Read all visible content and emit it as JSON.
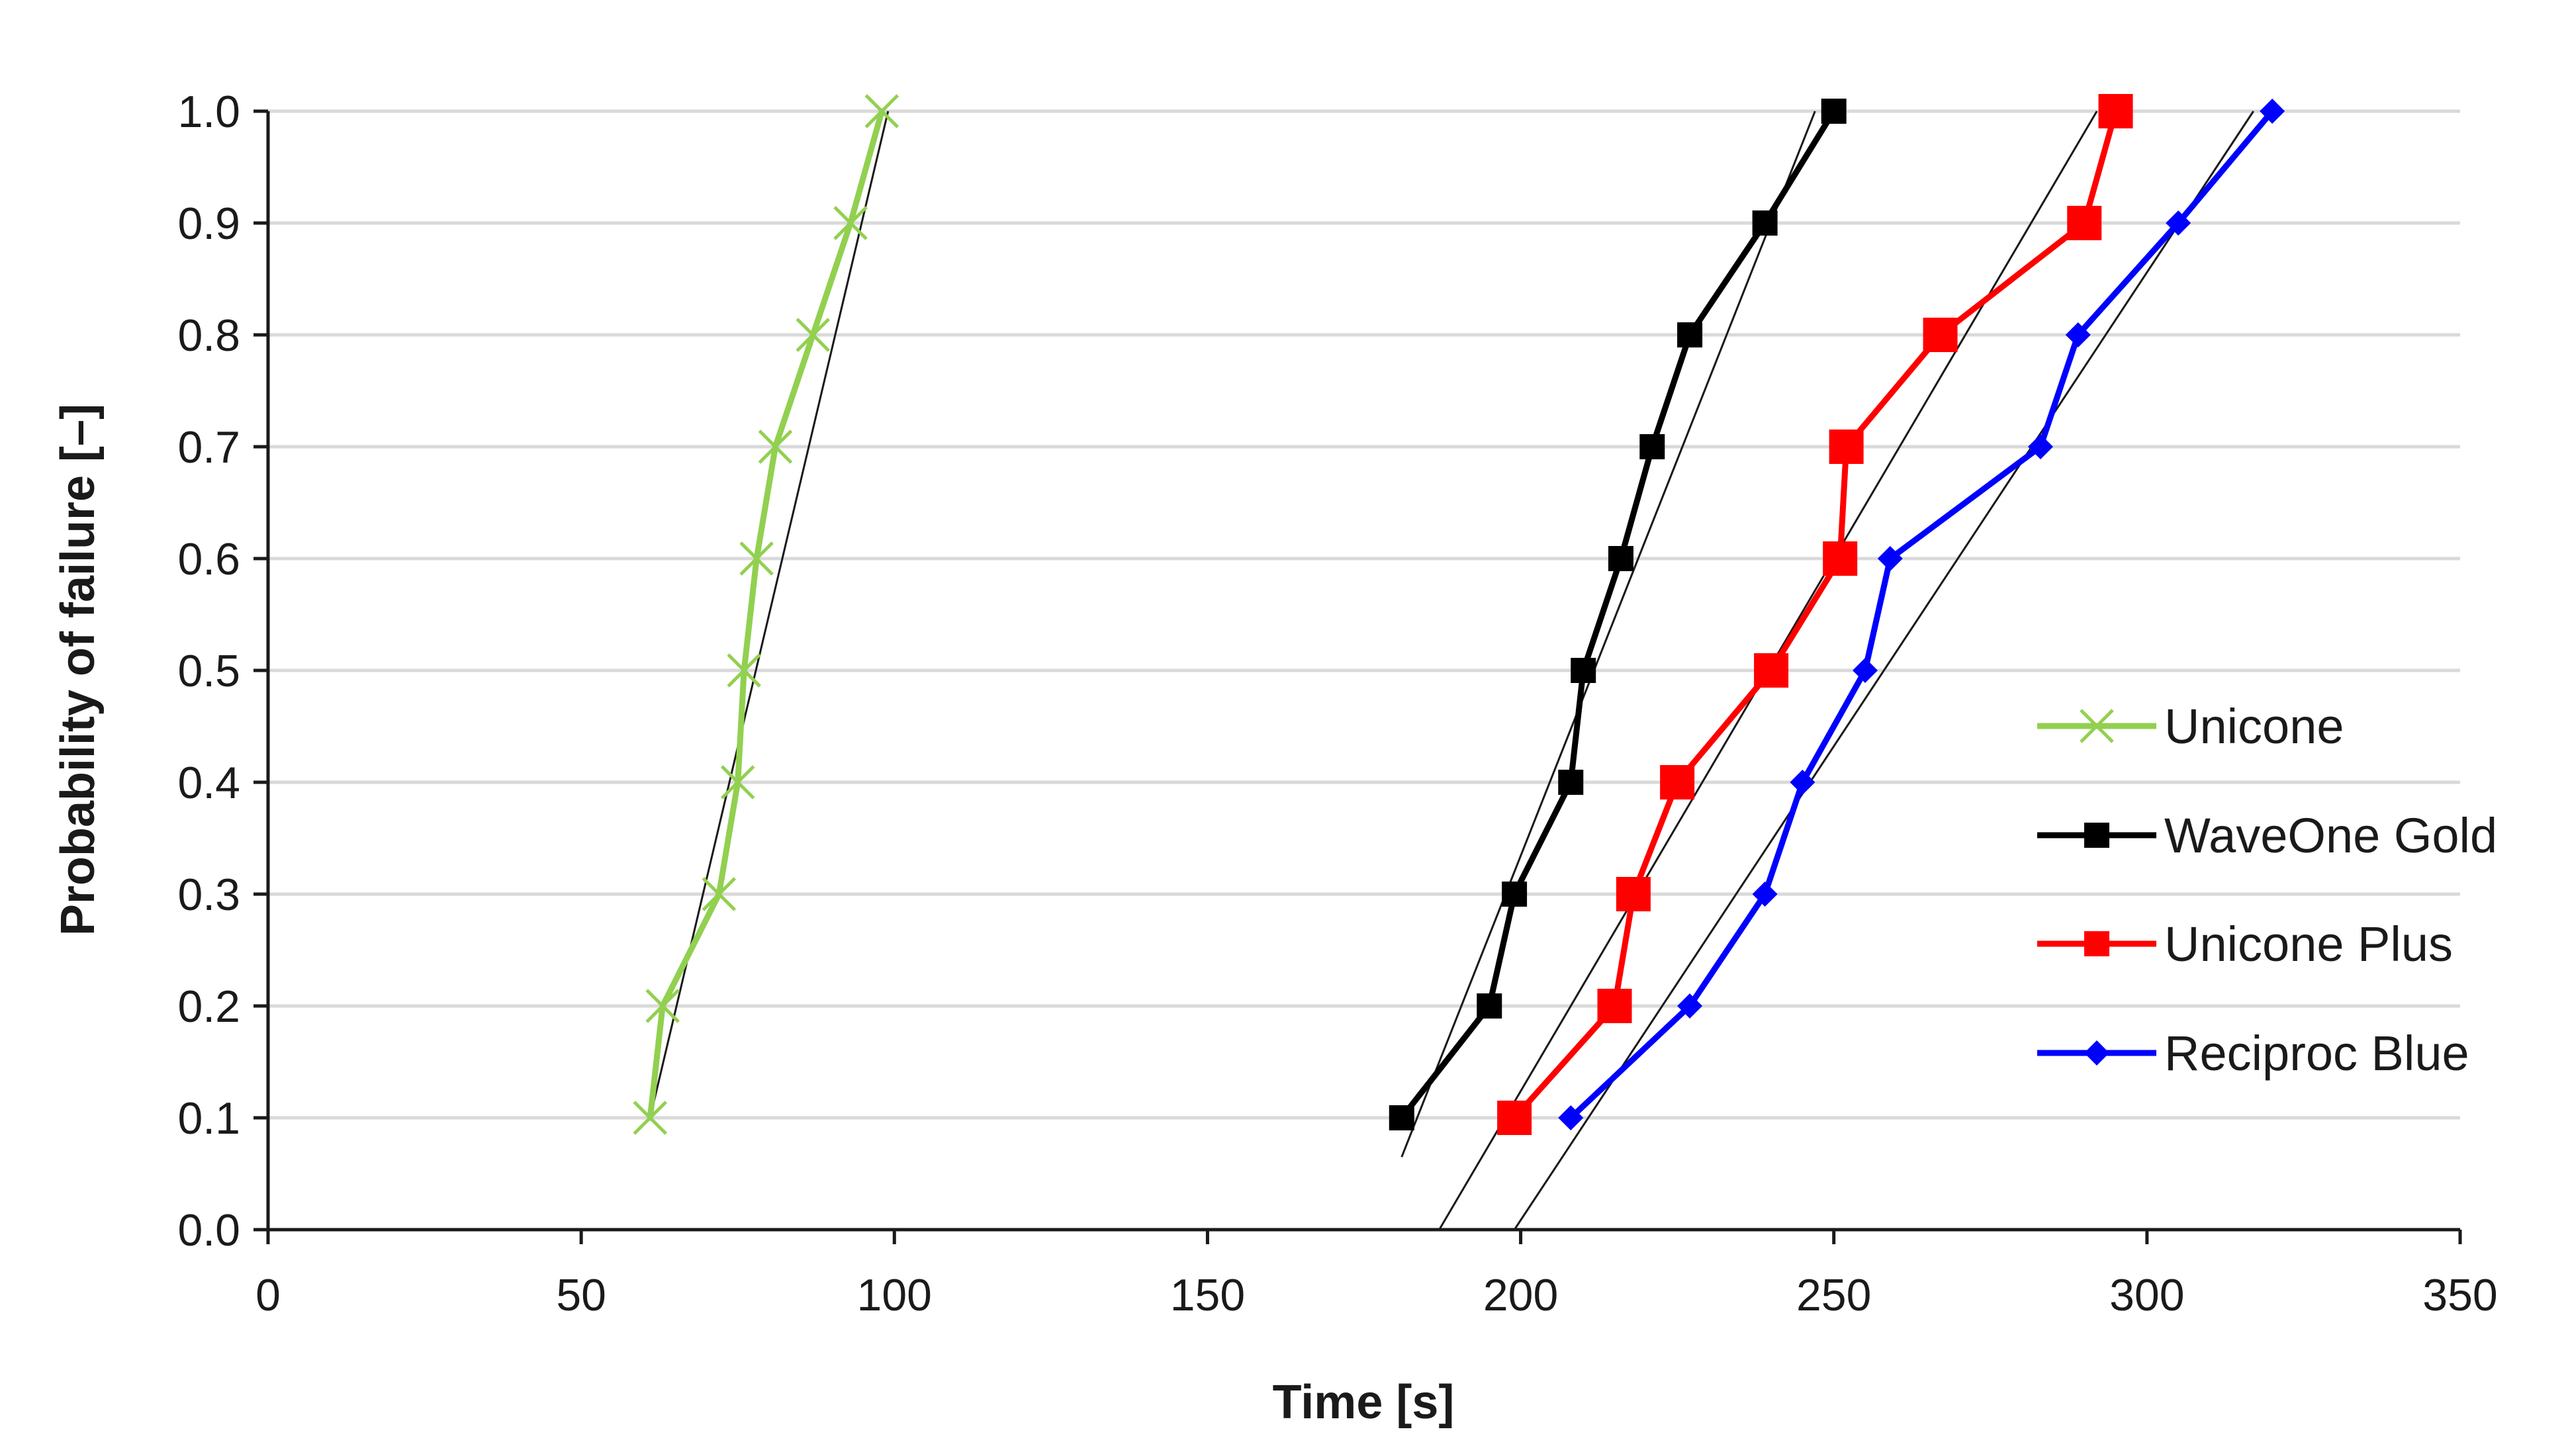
{
  "chart_data": {
    "type": "line",
    "title": "",
    "xlabel": "Time [s]",
    "ylabel": "Probability of failure [–]",
    "xlim": [
      0,
      350
    ],
    "ylim": [
      0,
      1.0
    ],
    "xticks": [
      0,
      50,
      100,
      150,
      200,
      250,
      300,
      350
    ],
    "xtick_labels": [
      "0",
      "50",
      "100",
      "150",
      "200",
      "250",
      "300",
      "350"
    ],
    "yticks": [
      0.0,
      0.1,
      0.2,
      0.3,
      0.4,
      0.5,
      0.6,
      0.7,
      0.8,
      0.9,
      1.0
    ],
    "ytick_labels": [
      "0.0",
      "0.1",
      "0.2",
      "0.3",
      "0.4",
      "0.5",
      "0.6",
      "0.7",
      "0.8",
      "0.9",
      "1.0"
    ],
    "grid": "horizontal",
    "legend_position": "right",
    "series": [
      {
        "name": "Unicone",
        "color": "#92d050",
        "marker": "x",
        "x": [
          61,
          63,
          72,
          75,
          76,
          78,
          81,
          87,
          93,
          98
        ],
        "y": [
          0.1,
          0.2,
          0.3,
          0.4,
          0.5,
          0.6,
          0.7,
          0.8,
          0.9,
          1.0
        ]
      },
      {
        "name": "WaveOne Gold",
        "color": "#000000",
        "marker": "square",
        "x": [
          181,
          195,
          199,
          208,
          210,
          216,
          221,
          227,
          239,
          250
        ],
        "y": [
          0.1,
          0.2,
          0.3,
          0.4,
          0.5,
          0.6,
          0.7,
          0.8,
          0.9,
          1.0
        ]
      },
      {
        "name": "Unicone Plus",
        "color": "#ff0000",
        "marker": "square",
        "x": [
          199,
          215,
          218,
          225,
          240,
          251,
          252,
          267,
          290,
          295
        ],
        "y": [
          0.1,
          0.2,
          0.3,
          0.4,
          0.5,
          0.6,
          0.7,
          0.8,
          0.9,
          1.0
        ]
      },
      {
        "name": "Reciproc Blue",
        "color": "#0000ff",
        "marker": "diamond",
        "x": [
          208,
          227,
          239,
          245,
          255,
          259,
          283,
          289,
          305,
          320
        ],
        "y": [
          0.1,
          0.2,
          0.3,
          0.4,
          0.5,
          0.6,
          0.7,
          0.8,
          0.9,
          1.0
        ]
      }
    ],
    "trendlines": [
      {
        "series": "Unicone",
        "color": "#1a1a1a",
        "x": [
          61,
          99
        ],
        "y": [
          0.1,
          1.0
        ]
      },
      {
        "series": "WaveOne Gold",
        "color": "#1a1a1a",
        "x": [
          181,
          247
        ],
        "y": [
          0.065,
          1.0
        ]
      },
      {
        "series": "Unicone Plus",
        "color": "#1a1a1a",
        "x": [
          187,
          292
        ],
        "y": [
          0.0,
          1.0
        ]
      },
      {
        "series": "Reciproc Blue",
        "color": "#1a1a1a",
        "x": [
          199,
          317
        ],
        "y": [
          0.0,
          1.0
        ]
      }
    ]
  }
}
